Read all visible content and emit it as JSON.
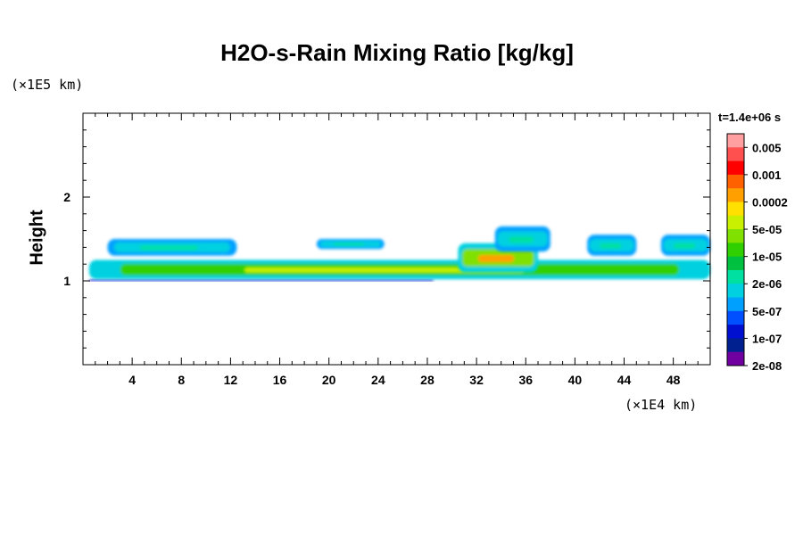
{
  "chart_data": {
    "type": "heatmap",
    "title": "H2O-s-Rain Mixing Ratio [kg/kg]",
    "ylabel": "Height",
    "xlabel": "",
    "x_unit": "(×1E4 km)",
    "y_unit": "(×1E5 km)",
    "time_label": "t=1.4e+06 s",
    "xlim": [
      0,
      51
    ],
    "ylim": [
      0,
      3
    ],
    "x_ticks": [
      4,
      8,
      12,
      16,
      20,
      24,
      28,
      32,
      36,
      40,
      44,
      48
    ],
    "y_ticks": [
      1,
      2
    ],
    "colorbar": {
      "labels": [
        "0.005",
        "0.001",
        "0.0002",
        "5e-05",
        "1e-05",
        "2e-06",
        "5e-07",
        "1e-07",
        "2e-08"
      ],
      "colors": [
        "#ff9f9f",
        "#ff5050",
        "#ff0000",
        "#ff6000",
        "#ffa000",
        "#ffe000",
        "#c8f000",
        "#80e000",
        "#30d000",
        "#00c040",
        "#00e0a0",
        "#00d0e0",
        "#00a0ff",
        "#0050ff",
        "#0010d0",
        "#002090",
        "#7000a0"
      ]
    },
    "regions": [
      {
        "x": [
          0.5,
          28.5
        ],
        "y": [
          1.0,
          1.02
        ],
        "level": "2e-08"
      },
      {
        "x": [
          0.5,
          51
        ],
        "y": [
          1.02,
          1.25
        ],
        "level": "5e-05"
      },
      {
        "x": [
          2,
          12.5
        ],
        "y": [
          1.3,
          1.5
        ],
        "level": "5e-07"
      },
      {
        "x": [
          19,
          24.5
        ],
        "y": [
          1.38,
          1.5
        ],
        "level": "5e-07"
      },
      {
        "x": [
          30.5,
          37
        ],
        "y": [
          1.1,
          1.45
        ],
        "level": "0.0002"
      },
      {
        "x": [
          33.5,
          38
        ],
        "y": [
          1.35,
          1.65
        ],
        "level": "5e-07"
      },
      {
        "x": [
          41,
          45
        ],
        "y": [
          1.3,
          1.55
        ],
        "level": "5e-07"
      },
      {
        "x": [
          47,
          51
        ],
        "y": [
          1.3,
          1.55
        ],
        "level": "5e-07"
      }
    ]
  }
}
